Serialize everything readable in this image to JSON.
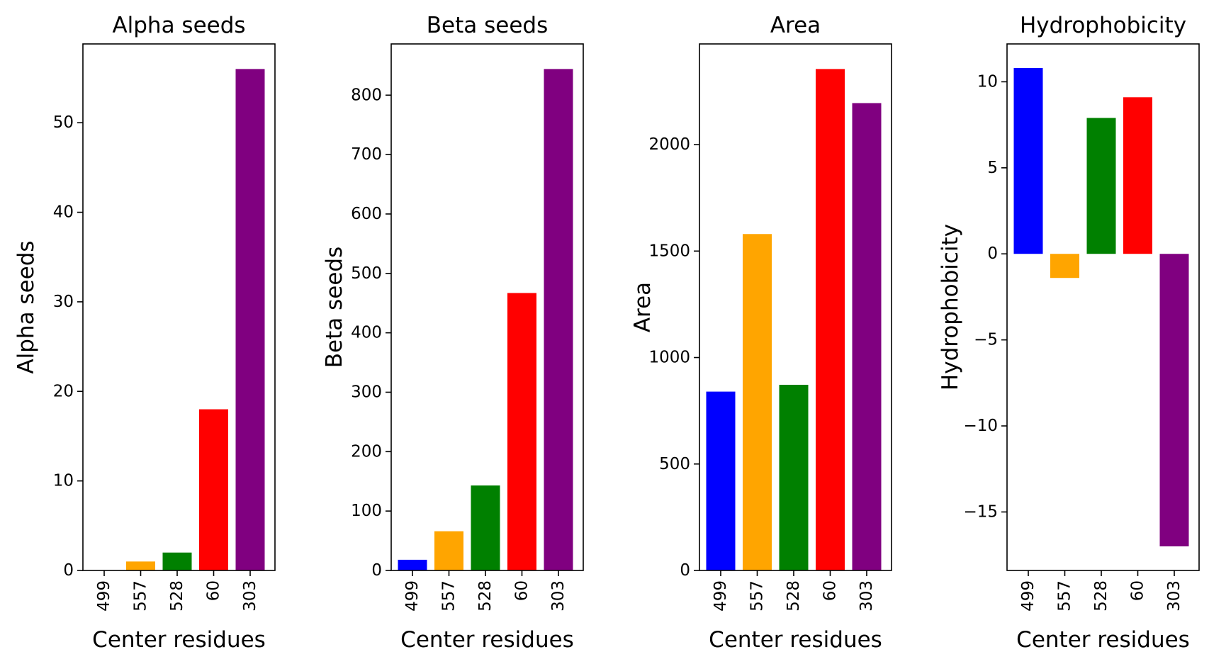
{
  "chart_data": [
    {
      "type": "bar",
      "title": "Alpha seeds",
      "xlabel": "Center residues",
      "ylabel": "Alpha seeds",
      "categories": [
        "499",
        "557",
        "528",
        "60",
        "303"
      ],
      "values": [
        0,
        1,
        2,
        18,
        56
      ],
      "colors": [
        "#0000ff",
        "#ffa500",
        "#008000",
        "#ff0000",
        "#800080"
      ],
      "ylim": [
        0,
        58.8
      ],
      "yticks": [
        0,
        10,
        20,
        30,
        40,
        50
      ],
      "ytick_labels": [
        "0",
        "10",
        "20",
        "30",
        "40",
        "50"
      ],
      "grid": false
    },
    {
      "type": "bar",
      "title": "Beta seeds",
      "xlabel": "Center residues",
      "ylabel": "Beta seeds",
      "categories": [
        "499",
        "557",
        "528",
        "60",
        "303"
      ],
      "values": [
        18,
        66,
        143,
        467,
        844
      ],
      "colors": [
        "#0000ff",
        "#ffa500",
        "#008000",
        "#ff0000",
        "#800080"
      ],
      "ylim": [
        0,
        886.2
      ],
      "yticks": [
        0,
        100,
        200,
        300,
        400,
        500,
        600,
        700,
        800
      ],
      "ytick_labels": [
        "0",
        "100",
        "200",
        "300",
        "400",
        "500",
        "600",
        "700",
        "800"
      ],
      "grid": false
    },
    {
      "type": "bar",
      "title": "Area",
      "xlabel": "Center residues",
      "ylabel": "Area",
      "categories": [
        "499",
        "557",
        "528",
        "60",
        "303"
      ],
      "values": [
        840,
        1580,
        872,
        2355,
        2195
      ],
      "colors": [
        "#0000ff",
        "#ffa500",
        "#008000",
        "#ff0000",
        "#800080"
      ],
      "ylim": [
        0,
        2472.8
      ],
      "yticks": [
        0,
        500,
        1000,
        1500,
        2000
      ],
      "ytick_labels": [
        "0",
        "500",
        "1000",
        "1500",
        "2000"
      ],
      "grid": false
    },
    {
      "type": "bar",
      "title": "Hydrophobicity",
      "xlabel": "Center residues",
      "ylabel": "Hydrophobicity",
      "categories": [
        "499",
        "557",
        "528",
        "60",
        "303"
      ],
      "values": [
        10.8,
        -1.4,
        7.9,
        9.1,
        -17.0
      ],
      "colors": [
        "#0000ff",
        "#ffa500",
        "#008000",
        "#ff0000",
        "#800080"
      ],
      "ylim": [
        -18.4,
        12.2
      ],
      "yticks": [
        -15,
        -10,
        -5,
        0,
        5,
        10
      ],
      "ytick_labels": [
        "−15",
        "−10",
        "−5",
        "0",
        "5",
        "10"
      ],
      "grid": false
    }
  ]
}
